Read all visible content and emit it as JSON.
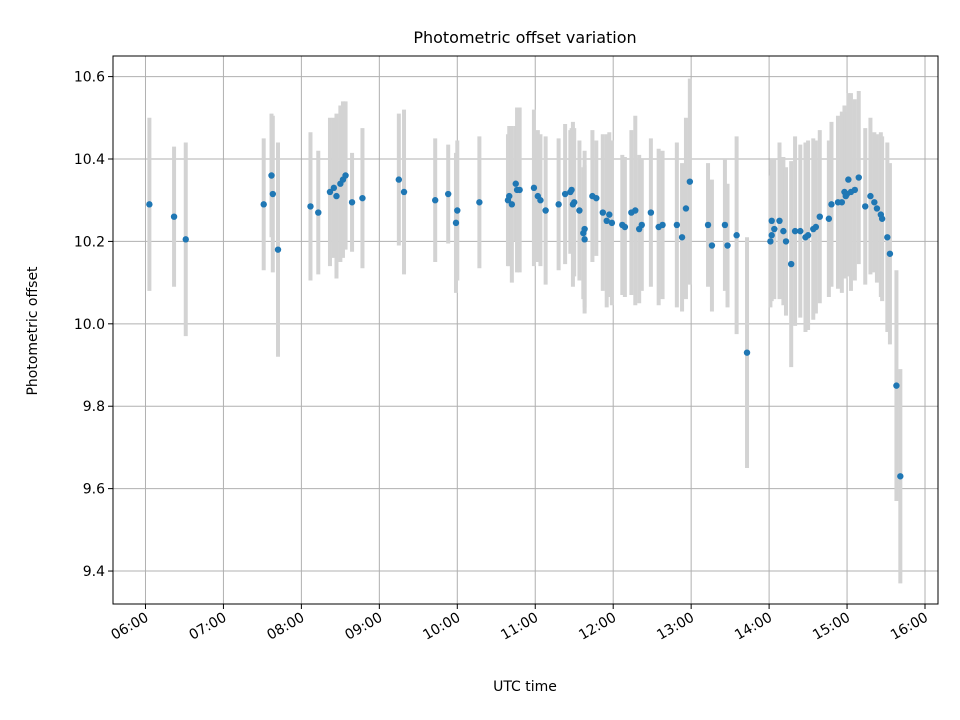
{
  "chart_data": {
    "type": "scatter",
    "title": "Photometric offset variation",
    "xlabel": "UTC time",
    "ylabel": "Photometric offset",
    "xlim": [
      "05:35",
      "16:10"
    ],
    "ylim": [
      9.32,
      10.65
    ],
    "x_ticks": [
      "06:00",
      "07:00",
      "08:00",
      "09:00",
      "10:00",
      "11:00",
      "12:00",
      "13:00",
      "14:00",
      "15:00",
      "16:00"
    ],
    "y_ticks": [
      "9.4",
      "9.6",
      "9.8",
      "10.0",
      "10.2",
      "10.4",
      "10.6"
    ],
    "grid": true,
    "colors": {
      "point": "#1f77b4",
      "errorbar": "#d3d3d3",
      "grid": "#b0b0b0"
    },
    "series": [
      {
        "points": [
          {
            "t": "06:03",
            "y": 10.29,
            "err": 0.21
          },
          {
            "t": "06:22",
            "y": 10.26,
            "err": 0.17
          },
          {
            "t": "06:31",
            "y": 10.205,
            "err": 0.235
          },
          {
            "t": "07:31",
            "y": 10.29,
            "err": 0.16
          },
          {
            "t": "07:37",
            "y": 10.36,
            "err": 0.15
          },
          {
            "t": "07:38",
            "y": 10.315,
            "err": 0.19
          },
          {
            "t": "07:42",
            "y": 10.18,
            "err": 0.26
          },
          {
            "t": "08:07",
            "y": 10.285,
            "err": 0.18
          },
          {
            "t": "08:13",
            "y": 10.27,
            "err": 0.15
          },
          {
            "t": "08:22",
            "y": 10.32,
            "err": 0.18
          },
          {
            "t": "08:25",
            "y": 10.33,
            "err": 0.17
          },
          {
            "t": "08:27",
            "y": 10.31,
            "err": 0.2
          },
          {
            "t": "08:30",
            "y": 10.34,
            "err": 0.19
          },
          {
            "t": "08:32",
            "y": 10.35,
            "err": 0.19
          },
          {
            "t": "08:34",
            "y": 10.36,
            "err": 0.18
          },
          {
            "t": "08:39",
            "y": 10.295,
            "err": 0.12
          },
          {
            "t": "08:47",
            "y": 10.305,
            "err": 0.17
          },
          {
            "t": "09:15",
            "y": 10.35,
            "err": 0.16
          },
          {
            "t": "09:19",
            "y": 10.32,
            "err": 0.2
          },
          {
            "t": "09:43",
            "y": 10.3,
            "err": 0.15
          },
          {
            "t": "09:53",
            "y": 10.315,
            "err": 0.12
          },
          {
            "t": "09:59",
            "y": 10.245,
            "err": 0.17
          },
          {
            "t": "10:00",
            "y": 10.275,
            "err": 0.17
          },
          {
            "t": "10:17",
            "y": 10.295,
            "err": 0.16
          },
          {
            "t": "10:39",
            "y": 10.3,
            "err": 0.16
          },
          {
            "t": "10:40",
            "y": 10.31,
            "err": 0.17
          },
          {
            "t": "10:42",
            "y": 10.29,
            "err": 0.19
          },
          {
            "t": "10:45",
            "y": 10.34,
            "err": 0.14
          },
          {
            "t": "10:46",
            "y": 10.325,
            "err": 0.2
          },
          {
            "t": "10:48",
            "y": 10.325,
            "err": 0.2
          },
          {
            "t": "10:59",
            "y": 10.33,
            "err": 0.19
          },
          {
            "t": "11:02",
            "y": 10.31,
            "err": 0.16
          },
          {
            "t": "11:04",
            "y": 10.3,
            "err": 0.16
          },
          {
            "t": "11:08",
            "y": 10.275,
            "err": 0.18
          },
          {
            "t": "11:18",
            "y": 10.29,
            "err": 0.16
          },
          {
            "t": "11:23",
            "y": 10.315,
            "err": 0.17
          },
          {
            "t": "11:27",
            "y": 10.32,
            "err": 0.15
          },
          {
            "t": "11:28",
            "y": 10.325,
            "err": 0.15
          },
          {
            "t": "11:29",
            "y": 10.29,
            "err": 0.2
          },
          {
            "t": "11:30",
            "y": 10.295,
            "err": 0.18
          },
          {
            "t": "11:34",
            "y": 10.275,
            "err": 0.17
          },
          {
            "t": "11:37",
            "y": 10.22,
            "err": 0.16
          },
          {
            "t": "11:38",
            "y": 10.205,
            "err": 0.18
          },
          {
            "t": "11:38",
            "y": 10.23,
            "err": 0.19
          },
          {
            "t": "11:44",
            "y": 10.31,
            "err": 0.16
          },
          {
            "t": "11:47",
            "y": 10.305,
            "err": 0.14
          },
          {
            "t": "11:52",
            "y": 10.27,
            "err": 0.19
          },
          {
            "t": "11:55",
            "y": 10.25,
            "err": 0.21
          },
          {
            "t": "11:57",
            "y": 10.265,
            "err": 0.2
          },
          {
            "t": "11:59",
            "y": 10.245,
            "err": 0.2
          },
          {
            "t": "12:07",
            "y": 10.24,
            "err": 0.17
          },
          {
            "t": "12:09",
            "y": 10.235,
            "err": 0.17
          },
          {
            "t": "12:14",
            "y": 10.27,
            "err": 0.2
          },
          {
            "t": "12:17",
            "y": 10.275,
            "err": 0.23
          },
          {
            "t": "12:20",
            "y": 10.23,
            "err": 0.18
          },
          {
            "t": "12:22",
            "y": 10.24,
            "err": 0.16
          },
          {
            "t": "12:29",
            "y": 10.27,
            "err": 0.18
          },
          {
            "t": "12:35",
            "y": 10.235,
            "err": 0.19
          },
          {
            "t": "12:38",
            "y": 10.24,
            "err": 0.18
          },
          {
            "t": "12:49",
            "y": 10.24,
            "err": 0.2
          },
          {
            "t": "12:53",
            "y": 10.21,
            "err": 0.18
          },
          {
            "t": "12:56",
            "y": 10.28,
            "err": 0.22
          },
          {
            "t": "12:59",
            "y": 10.345,
            "err": 0.25
          },
          {
            "t": "13:13",
            "y": 10.24,
            "err": 0.15
          },
          {
            "t": "13:16",
            "y": 10.19,
            "err": 0.16
          },
          {
            "t": "13:26",
            "y": 10.24,
            "err": 0.16
          },
          {
            "t": "13:28",
            "y": 10.19,
            "err": 0.15
          },
          {
            "t": "13:35",
            "y": 10.215,
            "err": 0.24
          },
          {
            "t": "13:43",
            "y": 9.93,
            "err": 0.28
          },
          {
            "t": "14:01",
            "y": 10.2,
            "err": 0.16
          },
          {
            "t": "14:02",
            "y": 10.215,
            "err": 0.16
          },
          {
            "t": "14:02",
            "y": 10.25,
            "err": 0.15
          },
          {
            "t": "14:04",
            "y": 10.23,
            "err": 0.17
          },
          {
            "t": "14:08",
            "y": 10.25,
            "err": 0.19
          },
          {
            "t": "14:11",
            "y": 10.225,
            "err": 0.18
          },
          {
            "t": "14:13",
            "y": 10.2,
            "err": 0.18
          },
          {
            "t": "14:17",
            "y": 10.145,
            "err": 0.25
          },
          {
            "t": "14:20",
            "y": 10.225,
            "err": 0.23
          },
          {
            "t": "14:24",
            "y": 10.225,
            "err": 0.21
          },
          {
            "t": "14:28",
            "y": 10.21,
            "err": 0.23
          },
          {
            "t": "14:30",
            "y": 10.215,
            "err": 0.23
          },
          {
            "t": "14:34",
            "y": 10.23,
            "err": 0.22
          },
          {
            "t": "14:36",
            "y": 10.235,
            "err": 0.21
          },
          {
            "t": "14:39",
            "y": 10.26,
            "err": 0.21
          },
          {
            "t": "14:46",
            "y": 10.255,
            "err": 0.19
          },
          {
            "t": "14:48",
            "y": 10.29,
            "err": 0.2
          },
          {
            "t": "14:53",
            "y": 10.295,
            "err": 0.21
          },
          {
            "t": "14:56",
            "y": 10.295,
            "err": 0.22
          },
          {
            "t": "14:58",
            "y": 10.32,
            "err": 0.21
          },
          {
            "t": "14:59",
            "y": 10.31,
            "err": 0.2
          },
          {
            "t": "15:00",
            "y": 10.315,
            "err": 0.2
          },
          {
            "t": "15:01",
            "y": 10.35,
            "err": 0.21
          },
          {
            "t": "15:03",
            "y": 10.32,
            "err": 0.24
          },
          {
            "t": "15:06",
            "y": 10.325,
            "err": 0.22
          },
          {
            "t": "15:09",
            "y": 10.355,
            "err": 0.21
          },
          {
            "t": "15:14",
            "y": 10.285,
            "err": 0.19
          },
          {
            "t": "15:18",
            "y": 10.31,
            "err": 0.19
          },
          {
            "t": "15:21",
            "y": 10.295,
            "err": 0.17
          },
          {
            "t": "15:23",
            "y": 10.28,
            "err": 0.18
          },
          {
            "t": "15:26",
            "y": 10.265,
            "err": 0.2
          },
          {
            "t": "15:27",
            "y": 10.255,
            "err": 0.2
          },
          {
            "t": "15:31",
            "y": 10.21,
            "err": 0.23
          },
          {
            "t": "15:33",
            "y": 10.17,
            "err": 0.22
          },
          {
            "t": "15:38",
            "y": 9.85,
            "err": 0.28
          },
          {
            "t": "15:41",
            "y": 9.63,
            "err": 0.26
          }
        ]
      }
    ]
  }
}
